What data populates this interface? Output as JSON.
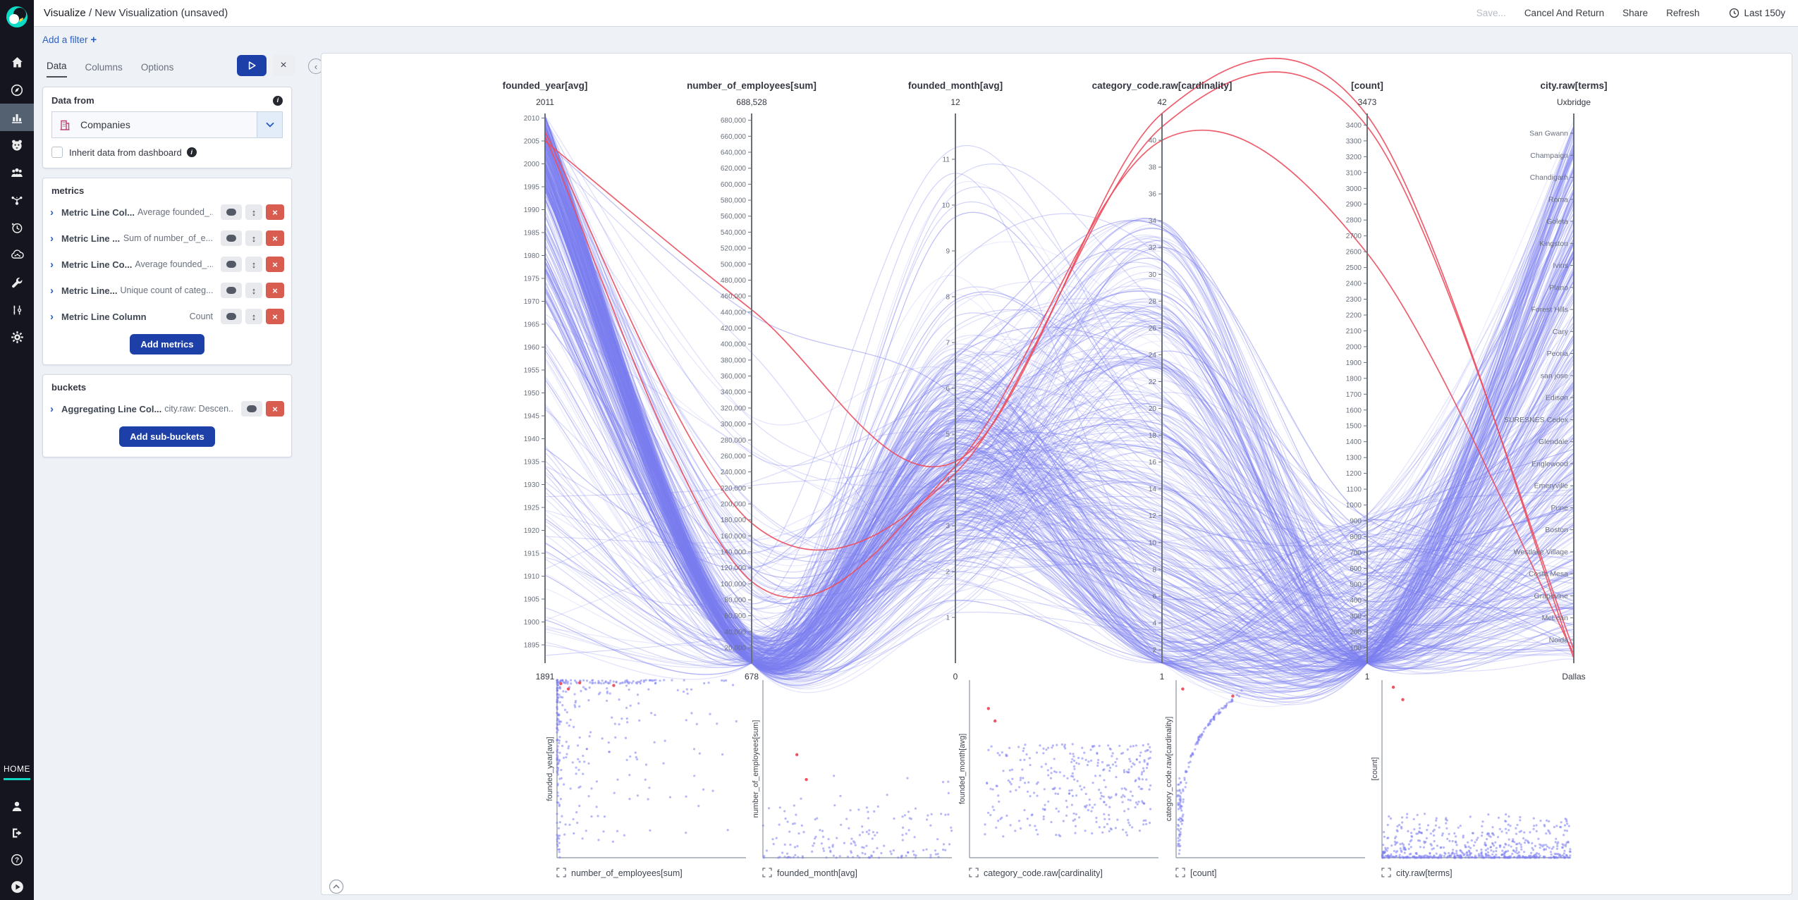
{
  "topbar": {
    "breadcrumb": "Visualize",
    "separator": "/",
    "title": "New Visualization (unsaved)",
    "actions": {
      "save": "Save...",
      "cancel": "Cancel And Return",
      "share": "Share",
      "refresh": "Refresh"
    },
    "time_range": "Last 150y"
  },
  "sidebar": {
    "home_label": "HOME"
  },
  "filter_bar": {
    "add_filter_label": "Add a filter",
    "add_icon": "+"
  },
  "config_panel": {
    "tabs": [
      {
        "label": "Data",
        "active": true
      },
      {
        "label": "Columns",
        "active": false
      },
      {
        "label": "Options",
        "active": false
      }
    ],
    "close_label": "×",
    "data_from": {
      "heading": "Data from",
      "index_name": "Companies",
      "inherit_label": "Inherit data from dashboard"
    },
    "metrics": {
      "heading": "metrics",
      "rows": [
        {
          "label": "Metric Line Col...",
          "summary": "Average founded_..."
        },
        {
          "label": "Metric Line ...",
          "summary": "Sum of number_of_e..."
        },
        {
          "label": "Metric Line Co...",
          "summary": "Average founded_..."
        },
        {
          "label": "Metric Line...",
          "summary": "Unique count of categ..."
        },
        {
          "label": "Metric Line Column",
          "summary": "Count"
        }
      ],
      "add_button": "Add metrics"
    },
    "buckets": {
      "heading": "buckets",
      "rows": [
        {
          "label": "Aggregating Line Col...",
          "summary": "city.raw: Descen..."
        }
      ],
      "add_button": "Add sub-buckets"
    }
  },
  "chart_data": {
    "type": "parallel-coordinates",
    "axes": [
      {
        "title": "founded_year[avg]",
        "max_label": "2011",
        "min_label": "1891",
        "max": 2011,
        "min": 1891,
        "tick_format": "plain",
        "ticks": [
          2010,
          2005,
          2000,
          1995,
          1990,
          1985,
          1980,
          1975,
          1970,
          1965,
          1960,
          1955,
          1950,
          1945,
          1940,
          1935,
          1930,
          1925,
          1920,
          1915,
          1910,
          1905,
          1900,
          1895
        ]
      },
      {
        "title": "number_of_employees[sum]",
        "max_label": "688,528",
        "min_label": "678",
        "max": 688528,
        "min": 678,
        "tick_format": "comma",
        "ticks": [
          680000,
          660000,
          640000,
          620000,
          600000,
          580000,
          560000,
          540000,
          520000,
          500000,
          480000,
          460000,
          440000,
          420000,
          400000,
          380000,
          360000,
          340000,
          320000,
          300000,
          280000,
          260000,
          240000,
          220000,
          200000,
          180000,
          160000,
          140000,
          120000,
          100000,
          80000,
          60000,
          40000,
          20000
        ]
      },
      {
        "title": "founded_month[avg]",
        "max_label": "12",
        "min_label": "0",
        "max": 12,
        "min": 0,
        "tick_format": "plain",
        "ticks": [
          11,
          10,
          9,
          8,
          7,
          6,
          5,
          4,
          3,
          2,
          1
        ]
      },
      {
        "title": "category_code.raw[cardinality]",
        "max_label": "42",
        "min_label": "1",
        "max": 42,
        "min": 1,
        "tick_format": "plain",
        "ticks": [
          40,
          38,
          36,
          34,
          32,
          30,
          28,
          26,
          24,
          22,
          20,
          18,
          16,
          14,
          12,
          10,
          8,
          6,
          4,
          2
        ]
      },
      {
        "title": "[count]",
        "max_label": "3473",
        "min_label": "1",
        "max": 3473,
        "min": 1,
        "tick_format": "plain",
        "ticks": [
          3400,
          3300,
          3200,
          3100,
          3000,
          2900,
          2800,
          2700,
          2600,
          2500,
          2400,
          2300,
          2200,
          2100,
          2000,
          1900,
          1800,
          1700,
          1600,
          1500,
          1400,
          1300,
          1200,
          1100,
          1000,
          900,
          800,
          700,
          600,
          500,
          400,
          300,
          200,
          100
        ]
      },
      {
        "title": "city.raw[terms]",
        "max_label": "Uxbridge",
        "min_label": "Dallas",
        "categories": [
          "San Gwann",
          "Champaign",
          "Chandigarh",
          "Roma",
          "Goleta",
          "Kingston",
          "Ivins",
          "Plano",
          "Forest Hills",
          "Cary",
          "Peoria",
          "san jose",
          "Edison",
          "SURESNES Cedex",
          "Glendale",
          "Englewood",
          "Emeryville",
          "Pune",
          "Boston",
          "Westlake Village",
          "Costa Mesa",
          "Grapevine",
          "McLean",
          "Noida"
        ]
      }
    ],
    "line_style": {
      "normal_color": "#7b7ef0",
      "highlight_color": "#ec4c5d"
    },
    "bundle_line_count": 400,
    "highlight_lines": [
      {
        "founded_year": 2005,
        "number_of_employees": 443000,
        "founded_month": 4.4,
        "category_cardinality": 42,
        "count": 3460,
        "city_frac": 0.997
      },
      {
        "founded_year": 2007,
        "number_of_employees": 176000,
        "founded_month": 4.15,
        "category_cardinality": 41,
        "count": 3390,
        "city_frac": 0.981
      },
      {
        "founded_year": 2006,
        "number_of_employees": 103000,
        "founded_month": 4.3,
        "category_cardinality": 40,
        "count": 2590,
        "city_frac": 0.989
      }
    ],
    "scatter_matrix": {
      "panels": [
        {
          "x_label": "number_of_employees[sum]",
          "y_label": "founded_year[avg]"
        },
        {
          "x_label": "founded_month[avg]",
          "y_label": "number_of_employees[sum]"
        },
        {
          "x_label": "category_code.raw[cardinality]",
          "y_label": "founded_month[avg]"
        },
        {
          "x_label": "[count]",
          "y_label": "category_code.raw[cardinality]"
        },
        {
          "x_label": "city.raw[terms]",
          "y_label": "[count]"
        }
      ]
    }
  }
}
